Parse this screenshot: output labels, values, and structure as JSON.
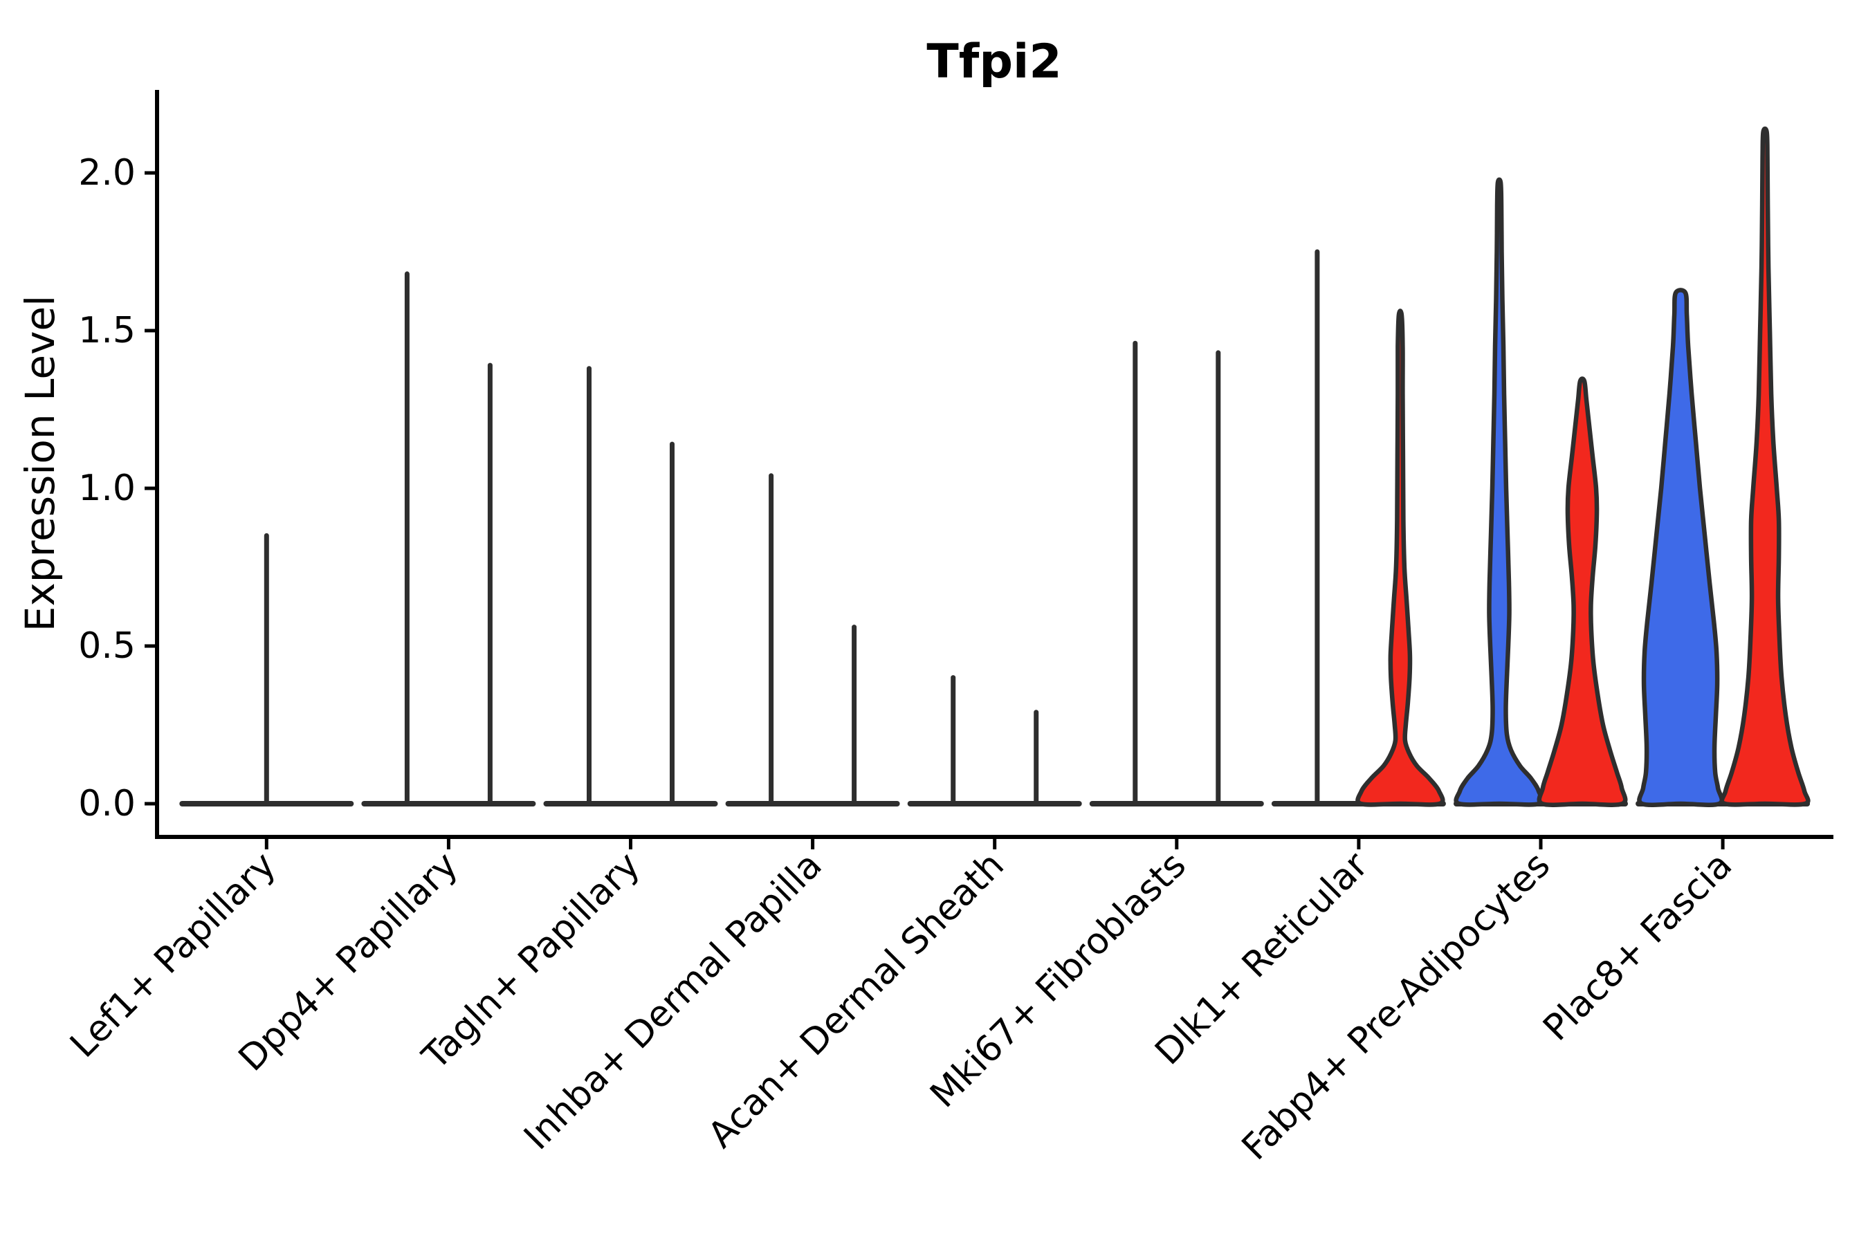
{
  "title": "Tfpi2",
  "y_axis": {
    "label": "Expression Level",
    "tick_labels": [
      "0.0",
      "0.5",
      "1.0",
      "1.5",
      "2.0"
    ],
    "tick_values": [
      0.0,
      0.5,
      1.0,
      1.5,
      2.0
    ]
  },
  "chart_data": {
    "type": "violin",
    "title": "Tfpi2",
    "xlabel": "",
    "ylabel": "Expression Level",
    "ylim": [
      -0.105,
      2.26
    ],
    "yticks": [
      0.0,
      0.5,
      1.0,
      1.5,
      2.0
    ],
    "ytick_labels": [
      "0.0",
      "0.5",
      "1.0",
      "1.5",
      "2.0"
    ],
    "grid": false,
    "legend_position": "none",
    "colors": {
      "group_blue_fill": "#3E6AE8",
      "group_red_fill": "#F2281E",
      "edge": "#2E2E2E",
      "spine": "#000000",
      "background": "#ffffff"
    },
    "note": "Two dodged violins per cell-type category (blue = group 1, red = group 2). Near-zero-width violins render as thin vertical max-spikes over a flat baseline at expression 0. dx = horizontal offset from category tick (px). max = maximum expression value. profile = [expression_value, half_width_px] outline samples.",
    "categories": [
      {
        "label": "Lef1+ Papillary",
        "violins": [
          {
            "kind": "spike",
            "group": "blue",
            "dx": 0,
            "max": 0.85
          }
        ]
      },
      {
        "label": "Dpp4+ Papillary",
        "violins": [
          {
            "kind": "spike",
            "group": "blue",
            "dx": -60,
            "max": 1.68
          },
          {
            "kind": "spike",
            "group": "red",
            "dx": 60,
            "max": 1.39
          }
        ]
      },
      {
        "label": "Tagln+ Papillary",
        "violins": [
          {
            "kind": "spike",
            "group": "blue",
            "dx": -60,
            "max": 1.38
          },
          {
            "kind": "spike",
            "group": "red",
            "dx": 60,
            "max": 1.14
          }
        ]
      },
      {
        "label": "Inhba+ Dermal Papilla",
        "violins": [
          {
            "kind": "spike",
            "group": "blue",
            "dx": -60,
            "max": 1.04
          },
          {
            "kind": "spike",
            "group": "red",
            "dx": 60,
            "max": 0.56
          }
        ]
      },
      {
        "label": "Acan+ Dermal Sheath",
        "violins": [
          {
            "kind": "spike",
            "group": "blue",
            "dx": -60,
            "max": 0.4
          },
          {
            "kind": "spike",
            "group": "red",
            "dx": 60,
            "max": 0.29
          }
        ]
      },
      {
        "label": "Mki67+ Fibroblasts",
        "violins": [
          {
            "kind": "spike",
            "group": "blue",
            "dx": -60,
            "max": 1.46
          },
          {
            "kind": "spike",
            "group": "red",
            "dx": 60,
            "max": 1.43
          }
        ]
      },
      {
        "label": "Dlk1+ Reticular",
        "violins": [
          {
            "kind": "spike",
            "group": "blue",
            "dx": -60,
            "max": 1.75
          },
          {
            "kind": "violin",
            "group": "red",
            "dx": 60,
            "max": 1.55,
            "profile": [
              [
                0.0,
                57
              ],
              [
                0.04,
                56
              ],
              [
                0.08,
                42
              ],
              [
                0.12,
                24
              ],
              [
                0.16,
                13
              ],
              [
                0.2,
                7
              ],
              [
                0.25,
                8
              ],
              [
                0.32,
                11
              ],
              [
                0.4,
                13.5
              ],
              [
                0.47,
                14
              ],
              [
                0.55,
                12
              ],
              [
                0.65,
                9
              ],
              [
                0.75,
                6
              ],
              [
                0.9,
                4.5
              ],
              [
                1.1,
                4
              ],
              [
                1.3,
                3.5
              ],
              [
                1.45,
                3.5
              ],
              [
                1.55,
                2
              ]
            ]
          }
        ]
      },
      {
        "label": "Fabp4+ Pre-Adipocytes",
        "violins": [
          {
            "kind": "violin",
            "group": "blue",
            "dx": -60,
            "max": 1.97,
            "profile": [
              [
                0.0,
                58
              ],
              [
                0.04,
                57
              ],
              [
                0.08,
                46
              ],
              [
                0.12,
                30
              ],
              [
                0.17,
                17
              ],
              [
                0.22,
                11
              ],
              [
                0.3,
                9.5
              ],
              [
                0.4,
                11
              ],
              [
                0.5,
                13
              ],
              [
                0.6,
                14.5
              ],
              [
                0.7,
                14
              ],
              [
                0.85,
                12
              ],
              [
                1.0,
                10
              ],
              [
                1.15,
                8.5
              ],
              [
                1.3,
                7
              ],
              [
                1.45,
                6
              ],
              [
                1.6,
                4.5
              ],
              [
                1.75,
                3.5
              ],
              [
                1.9,
                3
              ],
              [
                1.97,
                2
              ]
            ],
            "note": ""
          },
          {
            "kind": "violin",
            "group": "red",
            "dx": 60,
            "max": 1.34,
            "profile": [
              [
                0.0,
                58
              ],
              [
                0.05,
                57
              ],
              [
                0.1,
                50
              ],
              [
                0.17,
                40
              ],
              [
                0.25,
                30
              ],
              [
                0.35,
                22
              ],
              [
                0.45,
                16
              ],
              [
                0.55,
                13
              ],
              [
                0.63,
                12.5
              ],
              [
                0.72,
                15
              ],
              [
                0.82,
                19
              ],
              [
                0.92,
                21
              ],
              [
                1.0,
                20
              ],
              [
                1.1,
                15
              ],
              [
                1.2,
                10
              ],
              [
                1.28,
                6
              ],
              [
                1.34,
                3
              ]
            ]
          }
        ]
      },
      {
        "label": "Plac8+ Fascia",
        "violins": [
          {
            "kind": "violin",
            "group": "blue",
            "dx": -61,
            "max": 1.62,
            "profile": [
              [
                0.0,
                56
              ],
              [
                0.05,
                54
              ],
              [
                0.1,
                50
              ],
              [
                0.18,
                49
              ],
              [
                0.28,
                51
              ],
              [
                0.38,
                53
              ],
              [
                0.48,
                52
              ],
              [
                0.58,
                48
              ],
              [
                0.7,
                42
              ],
              [
                0.85,
                35
              ],
              [
                1.0,
                28
              ],
              [
                1.15,
                22
              ],
              [
                1.3,
                16
              ],
              [
                1.45,
                11
              ],
              [
                1.55,
                9
              ],
              [
                1.62,
                7
              ]
            ]
          },
          {
            "kind": "violin",
            "group": "red",
            "dx": 61,
            "max": 2.13,
            "profile": [
              [
                0.0,
                58
              ],
              [
                0.04,
                57
              ],
              [
                0.1,
                48
              ],
              [
                0.18,
                38
              ],
              [
                0.28,
                30
              ],
              [
                0.4,
                24
              ],
              [
                0.52,
                21
              ],
              [
                0.65,
                19
              ],
              [
                0.78,
                20
              ],
              [
                0.9,
                20
              ],
              [
                1.0,
                17
              ],
              [
                1.15,
                12
              ],
              [
                1.3,
                9
              ],
              [
                1.5,
                7
              ],
              [
                1.7,
                5
              ],
              [
                1.9,
                4
              ],
              [
                2.05,
                3.5
              ],
              [
                2.13,
                2.5
              ]
            ]
          }
        ]
      }
    ]
  }
}
